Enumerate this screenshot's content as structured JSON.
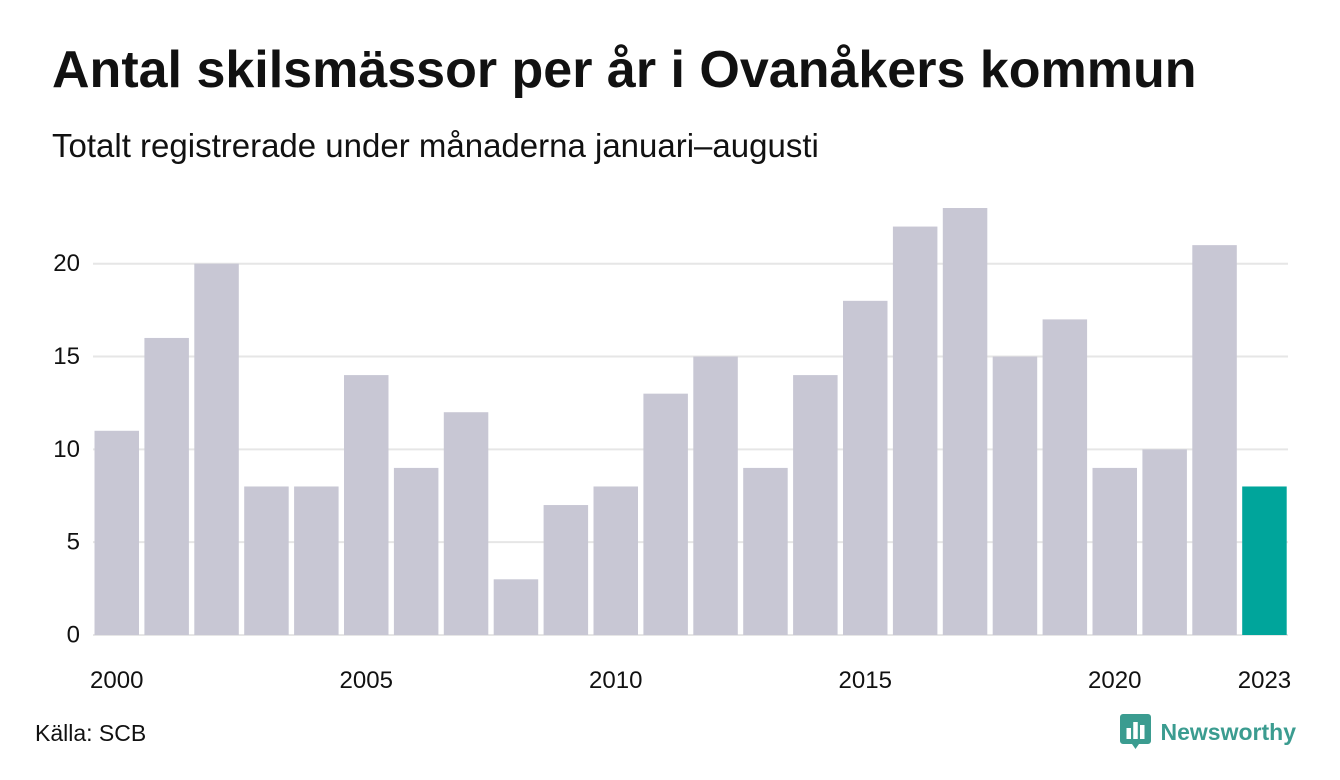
{
  "chart_data": {
    "type": "bar",
    "title": "Antal skilsmässor per år i Ovanåkers kommun",
    "subtitle": "Totalt registrerade under månaderna januari–augusti",
    "categories": [
      2000,
      2001,
      2002,
      2003,
      2004,
      2005,
      2006,
      2007,
      2008,
      2009,
      2010,
      2011,
      2012,
      2013,
      2014,
      2015,
      2016,
      2017,
      2018,
      2019,
      2020,
      2021,
      2022,
      2023
    ],
    "values": [
      11,
      16,
      20,
      8,
      8,
      14,
      9,
      12,
      3,
      7,
      8,
      13,
      15,
      9,
      14,
      18,
      22,
      23,
      15,
      17,
      9,
      10,
      21,
      8
    ],
    "highlight": 2023,
    "x_ticks": [
      2000,
      2005,
      2010,
      2015,
      2020,
      2023
    ],
    "y_ticks": [
      0,
      5,
      10,
      15,
      20
    ],
    "ylim": [
      0,
      23
    ],
    "grid": true
  },
  "source": "Källa: SCB",
  "brand": {
    "name": "Newsworthy",
    "icon": "newsworthy-logo-icon"
  },
  "colors": {
    "bar": "#c8c7d4",
    "highlight": "#00a59b",
    "grid": "#e6e6e6",
    "text": "#111111",
    "brand": "#3b9c90"
  }
}
